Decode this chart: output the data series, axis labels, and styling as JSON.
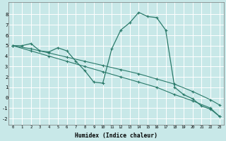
{
  "xlabel": "Humidex (Indice chaleur)",
  "background_color": "#c8e8e8",
  "grid_color": "#ffffff",
  "line_color": "#2a7a6a",
  "xlim": [
    -0.5,
    23.5
  ],
  "ylim": [
    -2.6,
    9.2
  ],
  "xticks": [
    0,
    1,
    2,
    3,
    4,
    5,
    6,
    7,
    8,
    9,
    10,
    11,
    12,
    13,
    14,
    15,
    16,
    17,
    18,
    19,
    20,
    21,
    22,
    23
  ],
  "yticks": [
    -2,
    -1,
    0,
    1,
    2,
    3,
    4,
    5,
    6,
    7,
    8
  ],
  "curve_x": [
    0,
    1,
    2,
    3,
    4,
    5,
    6,
    7,
    8,
    9,
    10,
    11,
    12,
    13,
    14,
    15,
    16,
    17,
    18,
    19,
    20,
    21,
    22,
    23
  ],
  "curve_y": [
    5.0,
    5.0,
    5.2,
    4.5,
    4.4,
    4.8,
    4.5,
    3.5,
    2.6,
    1.5,
    1.4,
    4.7,
    6.5,
    7.2,
    8.2,
    7.8,
    7.7,
    6.5,
    1.0,
    0.3,
    -0.1,
    -0.8,
    -1.1,
    -1.8
  ],
  "line1_x": [
    0,
    2,
    4,
    6,
    8,
    10,
    12,
    14,
    16,
    18,
    20,
    22,
    23
  ],
  "line1_y": [
    5.0,
    4.7,
    4.3,
    3.9,
    3.5,
    3.1,
    2.7,
    2.3,
    1.8,
    1.3,
    0.6,
    -0.2,
    -0.7
  ],
  "line2_x": [
    0,
    2,
    4,
    6,
    8,
    10,
    12,
    14,
    16,
    18,
    20,
    22,
    23
  ],
  "line2_y": [
    5.0,
    4.5,
    4.0,
    3.5,
    3.0,
    2.5,
    2.0,
    1.5,
    1.0,
    0.3,
    -0.3,
    -1.0,
    -1.8
  ]
}
